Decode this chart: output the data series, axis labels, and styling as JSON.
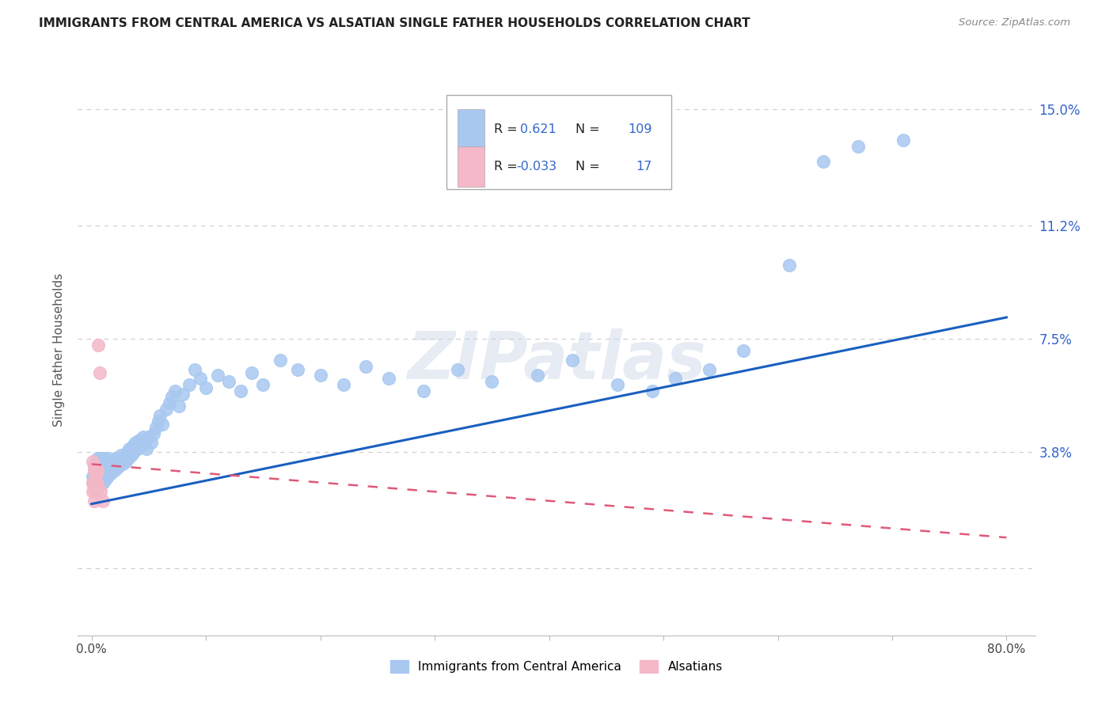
{
  "title": "IMMIGRANTS FROM CENTRAL AMERICA VS ALSATIAN SINGLE FATHER HOUSEHOLDS CORRELATION CHART",
  "source": "Source: ZipAtlas.com",
  "ylabel": "Single Father Households",
  "legend_blue_label": "Immigrants from Central America",
  "legend_pink_label": "Alsatians",
  "R_blue": "0.621",
  "N_blue": "109",
  "R_pink": "-0.033",
  "N_pink": "17",
  "blue_color": "#a8c8f0",
  "pink_color": "#f4b8c8",
  "blue_line_color": "#1a5fbf",
  "pink_line_color": "#e05878",
  "grid_color": "#cccccc",
  "watermark": "ZIPatlas",
  "blue_line_x0": 0.0,
  "blue_line_y0": 0.021,
  "blue_line_x1": 0.8,
  "blue_line_y1": 0.082,
  "pink_line_x0": 0.0,
  "pink_line_y0": 0.034,
  "pink_line_x1": 0.8,
  "pink_line_y1": 0.01,
  "xlim_min": -0.012,
  "xlim_max": 0.825,
  "ylim_min": -0.022,
  "ylim_max": 0.165,
  "x_tick_positions": [
    0.0,
    0.1,
    0.2,
    0.3,
    0.4,
    0.5,
    0.6,
    0.7,
    0.8
  ],
  "x_tick_labels": [
    "0.0%",
    "",
    "",
    "",
    "",
    "",
    "",
    "",
    "80.0%"
  ],
  "y_tick_positions": [
    0.0,
    0.038,
    0.075,
    0.112,
    0.15
  ],
  "y_tick_labels": [
    "",
    "3.8%",
    "7.5%",
    "11.2%",
    "15.0%"
  ],
  "blue_scatter_x": [
    0.001,
    0.001,
    0.002,
    0.002,
    0.002,
    0.002,
    0.003,
    0.003,
    0.003,
    0.003,
    0.004,
    0.004,
    0.004,
    0.005,
    0.005,
    0.005,
    0.005,
    0.006,
    0.006,
    0.006,
    0.007,
    0.007,
    0.007,
    0.008,
    0.008,
    0.008,
    0.009,
    0.009,
    0.01,
    0.01,
    0.01,
    0.011,
    0.011,
    0.012,
    0.012,
    0.013,
    0.013,
    0.014,
    0.014,
    0.015,
    0.015,
    0.016,
    0.017,
    0.018,
    0.019,
    0.02,
    0.021,
    0.022,
    0.023,
    0.025,
    0.026,
    0.027,
    0.028,
    0.03,
    0.031,
    0.032,
    0.033,
    0.035,
    0.036,
    0.037,
    0.038,
    0.04,
    0.042,
    0.043,
    0.045,
    0.046,
    0.048,
    0.05,
    0.052,
    0.054,
    0.056,
    0.058,
    0.06,
    0.062,
    0.065,
    0.068,
    0.07,
    0.073,
    0.076,
    0.08,
    0.085,
    0.09,
    0.095,
    0.1,
    0.11,
    0.12,
    0.13,
    0.14,
    0.15,
    0.165,
    0.18,
    0.2,
    0.22,
    0.24,
    0.26,
    0.29,
    0.32,
    0.35,
    0.39,
    0.42,
    0.46,
    0.49,
    0.51,
    0.54,
    0.57,
    0.61,
    0.64,
    0.67,
    0.71
  ],
  "blue_scatter_y": [
    0.028,
    0.03,
    0.026,
    0.028,
    0.03,
    0.033,
    0.025,
    0.028,
    0.031,
    0.034,
    0.027,
    0.03,
    0.033,
    0.026,
    0.029,
    0.032,
    0.036,
    0.028,
    0.031,
    0.035,
    0.027,
    0.031,
    0.034,
    0.029,
    0.032,
    0.036,
    0.03,
    0.034,
    0.028,
    0.032,
    0.036,
    0.03,
    0.034,
    0.029,
    0.033,
    0.031,
    0.035,
    0.03,
    0.034,
    0.032,
    0.036,
    0.033,
    0.031,
    0.035,
    0.033,
    0.032,
    0.036,
    0.034,
    0.033,
    0.035,
    0.037,
    0.034,
    0.036,
    0.035,
    0.038,
    0.036,
    0.039,
    0.037,
    0.04,
    0.038,
    0.041,
    0.039,
    0.042,
    0.04,
    0.043,
    0.041,
    0.039,
    0.043,
    0.041,
    0.044,
    0.046,
    0.048,
    0.05,
    0.047,
    0.052,
    0.054,
    0.056,
    0.058,
    0.053,
    0.057,
    0.06,
    0.065,
    0.062,
    0.059,
    0.063,
    0.061,
    0.058,
    0.064,
    0.06,
    0.068,
    0.065,
    0.063,
    0.06,
    0.066,
    0.062,
    0.058,
    0.065,
    0.061,
    0.063,
    0.068,
    0.06,
    0.058,
    0.062,
    0.065,
    0.071,
    0.099,
    0.133,
    0.138,
    0.14
  ],
  "pink_scatter_x": [
    0.001,
    0.001,
    0.001,
    0.002,
    0.002,
    0.002,
    0.003,
    0.003,
    0.003,
    0.004,
    0.004,
    0.005,
    0.005,
    0.006,
    0.007,
    0.008,
    0.01
  ],
  "pink_scatter_y": [
    0.025,
    0.028,
    0.035,
    0.022,
    0.028,
    0.032,
    0.025,
    0.03,
    0.033,
    0.028,
    0.031,
    0.027,
    0.032,
    0.073,
    0.064,
    0.025,
    0.022
  ]
}
